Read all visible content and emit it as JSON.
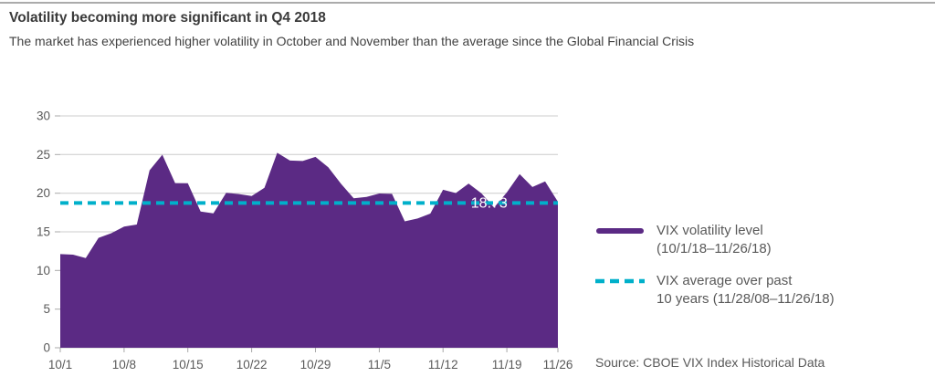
{
  "header": {
    "title": "Volatility becoming more significant in Q4 2018",
    "subtitle": "The market has experienced higher volatility in October and November than the average since the Global Financial Crisis"
  },
  "chart_data": {
    "type": "area",
    "title": "Volatility becoming more significant in Q4 2018",
    "x": [
      "10/1",
      "10/2",
      "10/3",
      "10/4",
      "10/5",
      "10/8",
      "10/9",
      "10/10",
      "10/11",
      "10/12",
      "10/15",
      "10/16",
      "10/17",
      "10/18",
      "10/19",
      "10/22",
      "10/23",
      "10/24",
      "10/25",
      "10/26",
      "10/29",
      "10/30",
      "10/31",
      "11/1",
      "11/2",
      "11/5",
      "11/6",
      "11/7",
      "11/8",
      "11/9",
      "11/12",
      "11/13",
      "11/14",
      "11/15",
      "11/16",
      "11/19",
      "11/20",
      "11/21",
      "11/23",
      "11/26"
    ],
    "series": [
      {
        "name": "VIX volatility level (10/1/18–11/26/18)",
        "values": [
          12.12,
          12.05,
          11.61,
          14.22,
          14.82,
          15.69,
          15.95,
          22.96,
          24.98,
          21.31,
          21.3,
          17.62,
          17.4,
          20.06,
          19.89,
          19.64,
          20.71,
          25.23,
          24.22,
          24.16,
          24.7,
          23.35,
          21.23,
          19.34,
          19.51,
          19.96,
          19.91,
          16.36,
          16.72,
          17.36,
          20.45,
          20.02,
          21.25,
          19.98,
          18.14,
          20.1,
          22.48,
          20.8,
          21.52,
          18.9
        ]
      }
    ],
    "average_line": {
      "name": "VIX average over past 10 years (11/28/08–11/26/18)",
      "value": 18.73,
      "label": "18.73"
    },
    "ylim": [
      0,
      30
    ],
    "yticks": [
      0,
      5,
      10,
      15,
      20,
      25,
      30
    ],
    "xticks": [
      "10/1",
      "10/8",
      "10/15",
      "10/22",
      "10/29",
      "11/5",
      "11/12",
      "11/19",
      "11/26"
    ],
    "grid": "horizontal",
    "legend_position": "right",
    "xlabel": "",
    "ylabel": "",
    "colors": {
      "area": "#5b2a84",
      "average": "#00b0ca"
    }
  },
  "legend": {
    "items": [
      {
        "swatch": "solid-purple-line",
        "line1": "VIX volatility level",
        "line2": "(10/1/18–11/26/18)"
      },
      {
        "swatch": "dashed-teal-line",
        "line1": "VIX average over past",
        "line2": "10 years (11/28/08–11/26/18)"
      }
    ]
  },
  "source": "Source: CBOE VIX Index Historical Data"
}
